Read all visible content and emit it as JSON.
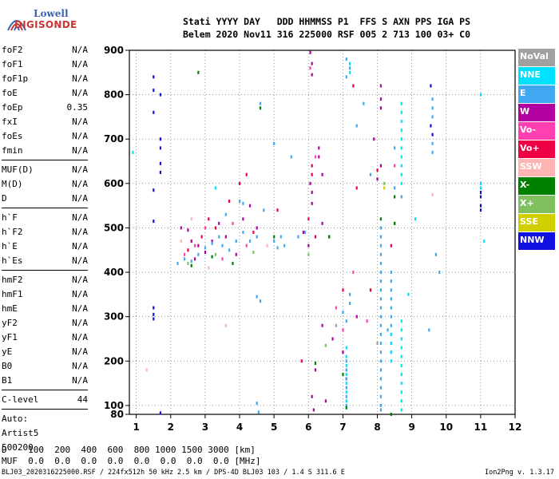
{
  "logo": {
    "line1": "Lowell",
    "line2": "DIGISONDE"
  },
  "header": {
    "line1": "Stati YYYY DAY   DDD HHMMSS P1  FFS S AXN PPS IGA PS",
    "line2": "Belem 2020 Nov11 316 225000 RSF 005 2 713 100 03+ C0"
  },
  "params": {
    "group1": [
      {
        "label": "foF2",
        "value": "N/A"
      },
      {
        "label": "foF1",
        "value": "N/A"
      },
      {
        "label": "foF1p",
        "value": "N/A"
      },
      {
        "label": "foE",
        "value": "N/A"
      },
      {
        "label": "foEp",
        "value": "0.35"
      },
      {
        "label": "fxI",
        "value": "N/A"
      },
      {
        "label": "foEs",
        "value": "N/A"
      },
      {
        "label": "fmin",
        "value": "N/A"
      }
    ],
    "group2": [
      {
        "label": "MUF(D)",
        "value": "N/A"
      },
      {
        "label": "M(D)",
        "value": "N/A"
      },
      {
        "label": "D",
        "value": "N/A"
      }
    ],
    "group3": [
      {
        "label": "h`F",
        "value": "N/A"
      },
      {
        "label": "h`F2",
        "value": "N/A"
      },
      {
        "label": "h`E",
        "value": "N/A"
      },
      {
        "label": "h`Es",
        "value": "N/A"
      }
    ],
    "group4": [
      {
        "label": "hmF2",
        "value": "N/A"
      },
      {
        "label": "hmF1",
        "value": "N/A"
      },
      {
        "label": "hmE",
        "value": "N/A"
      },
      {
        "label": "yF2",
        "value": "N/A"
      },
      {
        "label": "yF1",
        "value": "N/A"
      },
      {
        "label": "yE",
        "value": "N/A"
      },
      {
        "label": "B0",
        "value": "N/A"
      },
      {
        "label": "B1",
        "value": "N/A"
      }
    ],
    "clevel": {
      "label": "C-level",
      "value": "44"
    },
    "auto": [
      "Auto:",
      "Artist5",
      "500200"
    ]
  },
  "legend": [
    {
      "label": "NoVal",
      "color": "#a0a0a0"
    },
    {
      "label": "NNE",
      "color": "#00e0ff"
    },
    {
      "label": "E",
      "color": "#40a8f0"
    },
    {
      "label": "W",
      "color": "#b000a0"
    },
    {
      "label": "Vo-",
      "color": "#ff40b0"
    },
    {
      "label": "Vo+",
      "color": "#ee0044"
    },
    {
      "label": "SSW",
      "color": "#ffb4b4"
    },
    {
      "label": "X-",
      "color": "#008000"
    },
    {
      "label": "X+",
      "color": "#80c060"
    },
    {
      "label": "SSE",
      "color": "#d0d000"
    },
    {
      "label": "NNW",
      "color": "#1010e0"
    }
  ],
  "chart_data": {
    "type": "scatter",
    "xlim": [
      0.8,
      12
    ],
    "ylim": [
      80,
      900
    ],
    "xticks": [
      1,
      2,
      3,
      4,
      5,
      6,
      7,
      8,
      9,
      10,
      11,
      12
    ],
    "yticks": [
      80,
      100,
      200,
      300,
      400,
      500,
      600,
      700,
      800,
      900
    ],
    "xlabel": "",
    "ylabel": "",
    "grid": true,
    "series": [
      {
        "color": "#1010e0",
        "points": [
          [
            1.5,
            840
          ],
          [
            1.5,
            810
          ],
          [
            1.5,
            760
          ],
          [
            1.5,
            320
          ],
          [
            1.5,
            305
          ],
          [
            1.5,
            295
          ],
          [
            1.7,
            800
          ],
          [
            1.7,
            700
          ],
          [
            1.7,
            680
          ],
          [
            1.7,
            645
          ],
          [
            1.7,
            625
          ],
          [
            1.7,
            83
          ],
          [
            1.5,
            585
          ],
          [
            1.5,
            515
          ],
          [
            9.55,
            820
          ],
          [
            9.55,
            730
          ],
          [
            9.6,
            710
          ],
          [
            11,
            580
          ],
          [
            11,
            570
          ],
          [
            11,
            550
          ],
          [
            11,
            540
          ]
        ]
      },
      {
        "color": "#b000a0",
        "points": [
          [
            2.3,
            500
          ],
          [
            2.5,
            495
          ],
          [
            2.6,
            470
          ],
          [
            2.7,
            430
          ],
          [
            2.8,
            460
          ],
          [
            3.0,
            445
          ],
          [
            3.2,
            470
          ],
          [
            3.4,
            510
          ],
          [
            3.6,
            480
          ],
          [
            3.9,
            440
          ],
          [
            4.1,
            520
          ],
          [
            4.3,
            550
          ],
          [
            4.5,
            500
          ],
          [
            6.05,
            895
          ],
          [
            6.1,
            870
          ],
          [
            6.1,
            845
          ],
          [
            6.05,
            600
          ],
          [
            6.1,
            580
          ],
          [
            6.1,
            555
          ],
          [
            6.3,
            680
          ],
          [
            6.3,
            660
          ],
          [
            6.4,
            620
          ],
          [
            5.85,
            490
          ],
          [
            6.4,
            510
          ],
          [
            6.0,
            460
          ],
          [
            6.2,
            180
          ],
          [
            6.5,
            110
          ],
          [
            7.0,
            220
          ],
          [
            7.1,
            160
          ],
          [
            7.9,
            700
          ],
          [
            8.1,
            640
          ],
          [
            8.0,
            610
          ],
          [
            6.1,
            120
          ],
          [
            6.15,
            90
          ],
          [
            8.1,
            820
          ],
          [
            8.1,
            790
          ],
          [
            8.1,
            770
          ],
          [
            7.4,
            300
          ],
          [
            6.4,
            280
          ],
          [
            6.7,
            250
          ]
        ]
      },
      {
        "color": "#40a8f0",
        "points": [
          [
            2.2,
            420
          ],
          [
            2.4,
            430
          ],
          [
            2.6,
            425
          ],
          [
            2.8,
            440
          ],
          [
            3.0,
            455
          ],
          [
            3.2,
            465
          ],
          [
            3.4,
            480
          ],
          [
            3.5,
            460
          ],
          [
            3.7,
            450
          ],
          [
            3.9,
            470
          ],
          [
            4.1,
            490
          ],
          [
            4.3,
            470
          ],
          [
            4.5,
            480
          ],
          [
            4.1,
            555
          ],
          [
            4.0,
            560
          ],
          [
            3.6,
            530
          ],
          [
            5.0,
            470
          ],
          [
            5.1,
            455
          ],
          [
            5.2,
            480
          ],
          [
            5.3,
            460
          ],
          [
            5.7,
            480
          ],
          [
            5.9,
            490
          ],
          [
            5.0,
            690
          ],
          [
            5.5,
            660
          ],
          [
            4.6,
            780
          ],
          [
            4.7,
            540
          ],
          [
            4.5,
            345
          ],
          [
            4.6,
            335
          ],
          [
            4.5,
            105
          ],
          [
            4.55,
            85
          ],
          [
            7.1,
            880
          ],
          [
            7.2,
            860
          ],
          [
            7.1,
            840
          ],
          [
            7.0,
            310
          ],
          [
            7.1,
            290
          ],
          [
            7.6,
            780
          ],
          [
            8.1,
            500
          ],
          [
            8.1,
            480
          ],
          [
            8.1,
            460
          ],
          [
            8.1,
            440
          ],
          [
            8.1,
            420
          ],
          [
            8.1,
            400
          ],
          [
            8.1,
            380
          ],
          [
            8.1,
            360
          ],
          [
            8.1,
            340
          ],
          [
            8.1,
            320
          ],
          [
            8.1,
            300
          ],
          [
            8.1,
            280
          ],
          [
            8.1,
            260
          ],
          [
            8.1,
            240
          ],
          [
            8.1,
            220
          ],
          [
            8.1,
            200
          ],
          [
            8.1,
            180
          ],
          [
            8.1,
            160
          ],
          [
            8.1,
            140
          ],
          [
            8.1,
            120
          ],
          [
            8.1,
            100
          ],
          [
            8.1,
            90
          ],
          [
            8.4,
            400
          ],
          [
            8.4,
            380
          ],
          [
            8.4,
            360
          ],
          [
            8.4,
            340
          ],
          [
            8.4,
            320
          ],
          [
            8.4,
            300
          ],
          [
            8.4,
            280
          ],
          [
            8.4,
            260
          ],
          [
            8.4,
            240
          ],
          [
            8.4,
            220
          ],
          [
            7.2,
            350
          ],
          [
            7.2,
            330
          ],
          [
            7.1,
            200
          ],
          [
            7.1,
            180
          ],
          [
            7.1,
            160
          ],
          [
            7.1,
            140
          ],
          [
            7.1,
            120
          ],
          [
            7.1,
            100
          ],
          [
            9.6,
            790
          ],
          [
            9.6,
            770
          ],
          [
            9.6,
            750
          ],
          [
            9.6,
            690
          ],
          [
            9.6,
            670
          ],
          [
            9.5,
            270
          ],
          [
            9.7,
            440
          ],
          [
            9.8,
            400
          ],
          [
            8.3,
            270
          ],
          [
            8.5,
            680
          ],
          [
            7.8,
            620
          ],
          [
            7.4,
            730
          ],
          [
            8.5,
            590
          ],
          [
            8.7,
            570
          ]
        ]
      },
      {
        "color": "#00e0ff",
        "points": [
          [
            8.7,
            780
          ],
          [
            8.7,
            760
          ],
          [
            8.7,
            740
          ],
          [
            8.7,
            720
          ],
          [
            8.7,
            700
          ],
          [
            8.7,
            680
          ],
          [
            8.7,
            660
          ],
          [
            8.7,
            640
          ],
          [
            8.7,
            620
          ],
          [
            8.7,
            600
          ],
          [
            8.7,
            290
          ],
          [
            8.7,
            270
          ],
          [
            8.7,
            250
          ],
          [
            8.7,
            230
          ],
          [
            8.7,
            210
          ],
          [
            8.7,
            190
          ],
          [
            8.7,
            170
          ],
          [
            8.7,
            150
          ],
          [
            8.7,
            130
          ],
          [
            8.7,
            110
          ],
          [
            8.7,
            90
          ],
          [
            8.4,
            260
          ],
          [
            8.4,
            240
          ],
          [
            8.4,
            220
          ],
          [
            8.4,
            200
          ],
          [
            7.1,
            230
          ],
          [
            7.1,
            210
          ],
          [
            7.1,
            190
          ],
          [
            7.1,
            170
          ],
          [
            7.1,
            150
          ],
          [
            7.1,
            130
          ],
          [
            7.1,
            110
          ],
          [
            7.1,
            95
          ],
          [
            7.2,
            870
          ],
          [
            7.2,
            850
          ],
          [
            11.0,
            800
          ],
          [
            11.0,
            600
          ],
          [
            11.0,
            590
          ],
          [
            11.1,
            470
          ],
          [
            0.9,
            670
          ],
          [
            3.3,
            590
          ],
          [
            8.9,
            350
          ],
          [
            9.1,
            520
          ]
        ]
      },
      {
        "color": "#ee0044",
        "points": [
          [
            2.5,
            450
          ],
          [
            2.9,
            480
          ],
          [
            3.1,
            520
          ],
          [
            3.3,
            500
          ],
          [
            3.7,
            560
          ],
          [
            4.0,
            600
          ],
          [
            4.2,
            620
          ],
          [
            4.4,
            490
          ],
          [
            6.1,
            640
          ],
          [
            6.1,
            620
          ],
          [
            6.0,
            520
          ],
          [
            6.2,
            480
          ],
          [
            5.1,
            540
          ],
          [
            5.8,
            200
          ],
          [
            7.0,
            360
          ],
          [
            7.4,
            590
          ],
          [
            8.0,
            630
          ],
          [
            7.8,
            360
          ],
          [
            8.4,
            460
          ],
          [
            8.5,
            510
          ],
          [
            7.3,
            820
          ]
        ]
      },
      {
        "color": "#ff40b0",
        "points": [
          [
            2.4,
            440
          ],
          [
            2.7,
            460
          ],
          [
            3.0,
            500
          ],
          [
            3.5,
            430
          ],
          [
            3.8,
            510
          ],
          [
            4.2,
            460
          ],
          [
            6.2,
            660
          ],
          [
            6.05,
            860
          ],
          [
            7.0,
            270
          ],
          [
            6.8,
            320
          ],
          [
            7.7,
            290
          ],
          [
            7.3,
            400
          ],
          [
            8.5,
            640
          ]
        ]
      },
      {
        "color": "#008000",
        "points": [
          [
            2.8,
            850
          ],
          [
            2.6,
            415
          ],
          [
            3.2,
            435
          ],
          [
            3.8,
            420
          ],
          [
            4.6,
            770
          ],
          [
            5.0,
            480
          ],
          [
            6.6,
            480
          ],
          [
            6.6,
            480
          ],
          [
            7.1,
            95
          ],
          [
            7.0,
            170
          ],
          [
            8.5,
            570
          ],
          [
            8.5,
            510
          ],
          [
            8.4,
            80
          ],
          [
            8.1,
            520
          ],
          [
            6.2,
            195
          ]
        ]
      },
      {
        "color": "#80c060",
        "points": [
          [
            2.5,
            420
          ],
          [
            3.3,
            440
          ],
          [
            4.4,
            445
          ],
          [
            6.0,
            440
          ],
          [
            8.2,
            600
          ],
          [
            6.5,
            235
          ]
        ]
      },
      {
        "color": "#ffb4b4",
        "points": [
          [
            1.3,
            180
          ],
          [
            2.3,
            470
          ],
          [
            2.6,
            520
          ],
          [
            3.1,
            410
          ],
          [
            3.6,
            280
          ],
          [
            4.8,
            460
          ],
          [
            9.6,
            575
          ]
        ]
      },
      {
        "color": "#d0d000",
        "points": [
          [
            8.2,
            590
          ]
        ]
      },
      {
        "color": "#a0a0a0",
        "points": [
          [
            6.8,
            280
          ],
          [
            8.0,
            240
          ]
        ]
      }
    ]
  },
  "dtable": {
    "line1": "D    100  200  400  600  800 1000 1500 3000 [km]",
    "line2": "MUF  0.0  0.0  0.0  0.0  0.0  0.0  0.0  0.0 [MHz]"
  },
  "footer": {
    "info": "BLJ03_2020316225000.RSF / 224fx512h 50 kHz 2.5 km / DPS-4D BLJ03 103 / 1.4 S 311.6 E",
    "version": "Ion2Png v. 1.3.17"
  }
}
